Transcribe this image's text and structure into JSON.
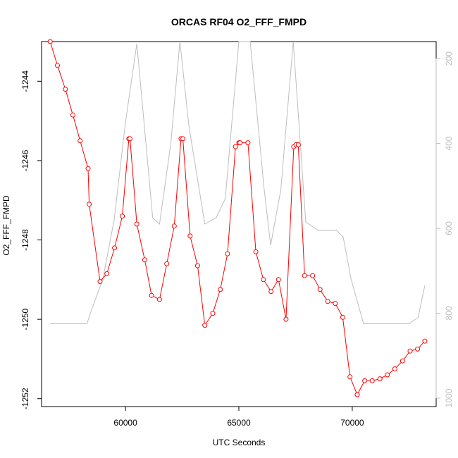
{
  "chart_data": {
    "type": "line",
    "title": "ORCAS RF04 O2_FFF_FMPD",
    "xlabel": "UTC Seconds",
    "ylabel": "O2_FFF_FMPD",
    "xlim": [
      56300,
      73700
    ],
    "ylim": [
      -1252.2,
      -1243.0
    ],
    "x_ticks": [
      60000,
      65000,
      70000
    ],
    "x_tick_labels": [
      "60000",
      "65000",
      "70000"
    ],
    "y_ticks": [
      -1244,
      -1246,
      -1248,
      -1250,
      -1252
    ],
    "y_tick_labels": [
      "-1244",
      "-1246",
      "-1248",
      "-1250",
      "-1252"
    ],
    "y2lim": [
      1020,
      160
    ],
    "y2_ticks": [
      200,
      400,
      600,
      800,
      1000
    ],
    "y2_tick_labels": [
      "200",
      "400",
      "600",
      "800",
      "1000"
    ],
    "grid": false,
    "series": [
      {
        "color": "#ff0000",
        "axis": "left",
        "markers": "open-circle",
        "x": [
          56680,
          57000,
          57350,
          57680,
          58000,
          58350,
          58400,
          58880,
          59180,
          59520,
          59860,
          60150,
          60200,
          60500,
          60850,
          61150,
          61500,
          61820,
          62150,
          62450,
          62530,
          62850,
          63180,
          63500,
          63850,
          64180,
          64500,
          64850,
          65000,
          65050,
          65400,
          65750,
          66080,
          66420,
          66750,
          67080,
          67420,
          67520,
          67620,
          67900,
          68250,
          68580,
          68920,
          69250,
          69580,
          69900,
          70220,
          70550,
          70880,
          71220,
          71550,
          71880,
          72220,
          72550,
          72880,
          73200
        ],
        "y": [
          -1243.0,
          -1243.6,
          -1244.2,
          -1244.85,
          -1245.5,
          -1246.2,
          -1247.1,
          -1249.05,
          -1248.85,
          -1248.2,
          -1247.4,
          -1245.45,
          -1245.45,
          -1247.6,
          -1248.5,
          -1249.4,
          -1249.5,
          -1248.6,
          -1247.65,
          -1245.45,
          -1245.45,
          -1247.9,
          -1248.65,
          -1250.15,
          -1249.85,
          -1249.25,
          -1248.35,
          -1245.65,
          -1245.55,
          -1245.55,
          -1245.55,
          -1248.3,
          -1249.0,
          -1249.3,
          -1249.0,
          -1250.0,
          -1245.65,
          -1245.6,
          -1245.6,
          -1248.9,
          -1248.9,
          -1249.25,
          -1249.55,
          -1249.6,
          -1249.95,
          -1251.45,
          -1251.9,
          -1251.55,
          -1251.55,
          -1251.5,
          -1251.4,
          -1251.25,
          -1251.05,
          -1250.8,
          -1250.75,
          -1250.55
        ]
      },
      {
        "color": "#bebebe",
        "axis": "right",
        "markers": "none",
        "x": [
          56680,
          57500,
          58300,
          58450,
          59000,
          59500,
          60000,
          60500,
          61200,
          61500,
          62000,
          62400,
          62800,
          63500,
          64000,
          64400,
          65000,
          65500,
          66100,
          66400,
          66850,
          67400,
          67950,
          68500,
          69300,
          69600,
          69950,
          70500,
          71000,
          71500,
          72500,
          72900,
          73200
        ],
        "y": [
          825,
          825,
          825,
          800,
          720,
          580,
          350,
          165,
          575,
          590,
          400,
          160,
          360,
          590,
          575,
          530,
          100,
          160,
          500,
          640,
          510,
          160,
          585,
          605,
          605,
          620,
          720,
          825,
          825,
          825,
          825,
          810,
          735
        ]
      }
    ]
  }
}
